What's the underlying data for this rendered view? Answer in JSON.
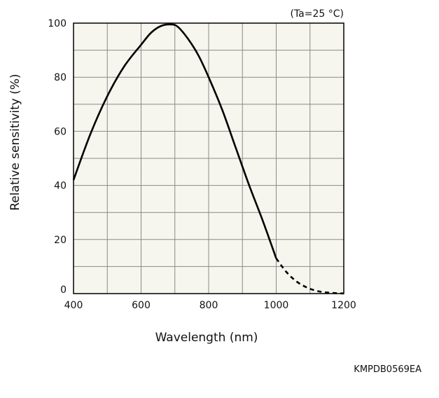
{
  "chart_data": {
    "type": "line",
    "condition": "(Ta=25 °C)",
    "xlabel": "Wavelength (nm)",
    "ylabel": "Relative sensitivity (%)",
    "xlim": [
      400,
      1200
    ],
    "ylim": [
      0,
      100
    ],
    "x_ticks": [
      400,
      600,
      800,
      1000,
      1200
    ],
    "y_ticks": [
      0,
      20,
      40,
      60,
      80,
      100
    ],
    "grid": true,
    "plot_background": "#f6f5ee",
    "line_color": "#000000",
    "series": [
      {
        "style": "solid",
        "x": [
          400,
          450,
          500,
          550,
          600,
          630,
          660,
          690,
          710,
          740,
          770,
          800,
          840,
          880,
          920,
          960,
          1000
        ],
        "y": [
          42,
          59,
          73,
          84,
          92,
          96.5,
          99,
          99.5,
          98.5,
          94,
          88,
          80,
          68,
          54,
          40,
          27,
          13
        ]
      },
      {
        "style": "dashed",
        "x": [
          1000,
          1030,
          1060,
          1090,
          1120,
          1150,
          1180,
          1200
        ],
        "y": [
          13,
          8,
          4.5,
          2.3,
          1.0,
          0.4,
          0.15,
          0.05
        ]
      }
    ]
  },
  "footer": {
    "code": "KMPDB0569EA"
  }
}
